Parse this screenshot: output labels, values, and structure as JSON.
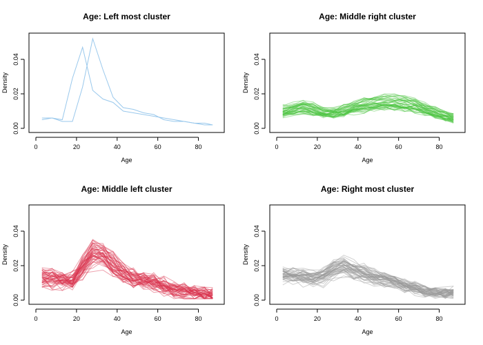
{
  "chart_data": [
    {
      "type": "line",
      "title": "Age: Left most cluster",
      "xlabel": "Age",
      "ylabel": "Density",
      "xlim": [
        0,
        90
      ],
      "ylim": [
        0,
        0.052
      ],
      "xticks": [
        "0",
        "20",
        "40",
        "60",
        "80"
      ],
      "yticks": [
        "0.00",
        "0.02",
        "0.04"
      ],
      "color": "#99c8ec",
      "x": [
        3,
        8,
        13,
        18,
        23,
        28,
        33,
        38,
        43,
        48,
        53,
        58,
        63,
        68,
        73,
        78,
        83,
        87
      ],
      "series": [
        {
          "values": [
            0.005,
            0.006,
            0.005,
            0.029,
            0.047,
            0.022,
            0.017,
            0.015,
            0.01,
            0.009,
            0.008,
            0.007,
            0.006,
            0.005,
            0.004,
            0.003,
            0.002,
            0.002
          ]
        },
        {
          "values": [
            0.006,
            0.006,
            0.004,
            0.004,
            0.024,
            0.052,
            0.034,
            0.018,
            0.012,
            0.011,
            0.009,
            0.008,
            0.005,
            0.004,
            0.004,
            0.003,
            0.003,
            0.002
          ]
        }
      ],
      "series_count": 2
    },
    {
      "type": "line",
      "title": "Age: Middle right cluster",
      "xlabel": "Age",
      "ylabel": "Density",
      "xlim": [
        0,
        90
      ],
      "ylim": [
        0,
        0.052
      ],
      "xticks": [
        "0",
        "20",
        "40",
        "60",
        "80"
      ],
      "yticks": [
        "0.00",
        "0.02",
        "0.04"
      ],
      "color": "#4ac43e",
      "x": [
        3,
        8,
        13,
        18,
        23,
        28,
        33,
        38,
        43,
        48,
        53,
        58,
        63,
        68,
        73,
        78,
        83,
        87
      ],
      "series_mean": [
        0.01,
        0.011,
        0.012,
        0.011,
        0.009,
        0.009,
        0.01,
        0.012,
        0.013,
        0.014,
        0.015,
        0.015,
        0.014,
        0.013,
        0.011,
        0.009,
        0.007,
        0.006
      ],
      "series_count": 40,
      "spread": 0.0018
    },
    {
      "type": "line",
      "title": "Age: Middle left cluster",
      "xlabel": "Age",
      "ylabel": "Density",
      "xlim": [
        0,
        90
      ],
      "ylim": [
        0,
        0.052
      ],
      "xticks": [
        "0",
        "20",
        "40",
        "60",
        "80"
      ],
      "yticks": [
        "0.00",
        "0.02",
        "0.04"
      ],
      "color": "#d9334e",
      "x": [
        3,
        8,
        13,
        18,
        23,
        28,
        33,
        38,
        43,
        48,
        53,
        58,
        63,
        68,
        73,
        78,
        83,
        87
      ],
      "series_mean": [
        0.012,
        0.012,
        0.011,
        0.011,
        0.018,
        0.026,
        0.025,
        0.02,
        0.015,
        0.012,
        0.011,
        0.01,
        0.008,
        0.006,
        0.005,
        0.004,
        0.003,
        0.003
      ],
      "series_count": 45,
      "spread": 0.004
    },
    {
      "type": "line",
      "title": "Age: Right most cluster",
      "xlabel": "Age",
      "ylabel": "Density",
      "xlim": [
        0,
        90
      ],
      "ylim": [
        0,
        0.052
      ],
      "xticks": [
        "0",
        "20",
        "40",
        "60",
        "80"
      ],
      "yticks": [
        "0.00",
        "0.02",
        "0.04"
      ],
      "color": "#9a9a9a",
      "x": [
        3,
        8,
        13,
        18,
        23,
        28,
        33,
        38,
        43,
        48,
        53,
        58,
        63,
        68,
        73,
        78,
        83,
        87
      ],
      "series_mean": [
        0.014,
        0.014,
        0.013,
        0.012,
        0.013,
        0.017,
        0.019,
        0.017,
        0.015,
        0.013,
        0.012,
        0.01,
        0.008,
        0.007,
        0.005,
        0.004,
        0.004,
        0.004
      ],
      "series_count": 45,
      "spread": 0.0028
    }
  ]
}
